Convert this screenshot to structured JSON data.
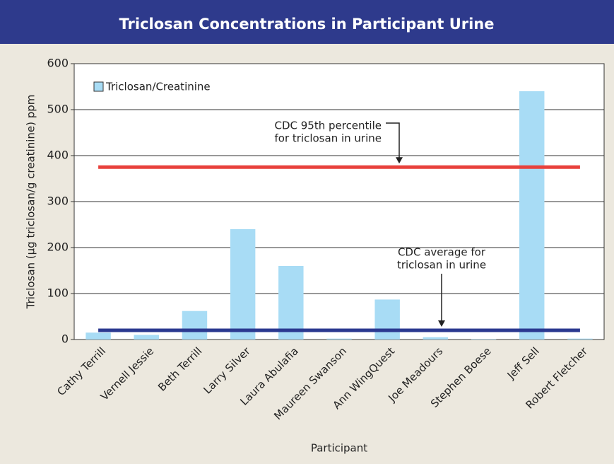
{
  "chart_data": {
    "type": "bar",
    "title": "Triclosan Concentrations in Participant Urine",
    "xlabel": "Participant",
    "ylabel": "Triclosan (µg triclosan/g creatinine) ppm",
    "categories": [
      "Cathy Terrill",
      "Vernell Jessie",
      "Beth Terrill",
      "Larry Silver",
      "Laura Abulafia",
      "Maureen Swanson",
      "Ann WingQuest",
      "Joe Meadours",
      "Stephen Boese",
      "Jeff Sell",
      "Robert Fletcher"
    ],
    "series": [
      {
        "name": "Triclosan/Creatinine",
        "color": "#a8dcf5",
        "values": [
          15,
          10,
          62,
          240,
          160,
          2,
          87,
          5,
          1,
          540,
          2
        ]
      }
    ],
    "reference_lines": [
      {
        "value": 375,
        "color": "#e8413c",
        "label": [
          "CDC 95th percentile",
          "for triclosan in urine"
        ]
      },
      {
        "value": 20,
        "color": "#2b3990",
        "label": [
          "CDC average for",
          "triclosan in urine"
        ]
      }
    ],
    "ylim": [
      0,
      600
    ],
    "yticks": [
      0,
      100,
      200,
      300,
      400,
      500,
      600
    ],
    "grid": true,
    "legend": "upper left"
  }
}
